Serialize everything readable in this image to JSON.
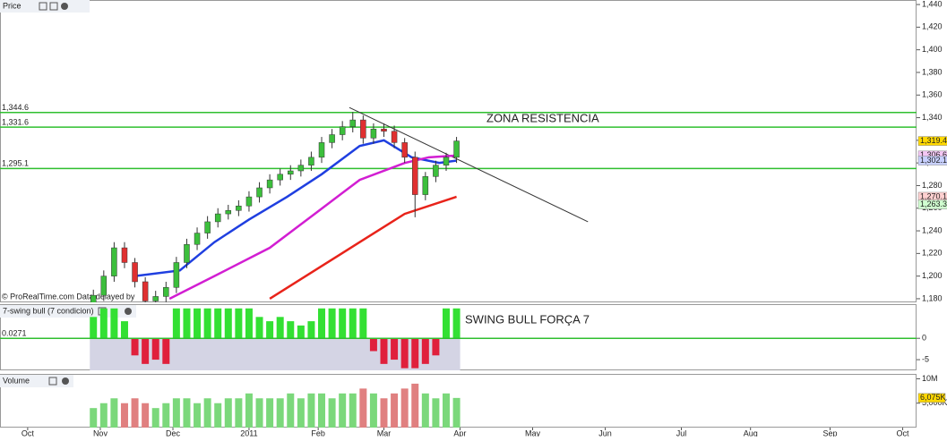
{
  "chart_data": [
    {
      "type": "candlestick",
      "title": "Price",
      "watermark": "© ProRealTime.com Data delayed by",
      "xlim": [
        0,
        265
      ],
      "ylim": [
        1176.8,
        1444
      ],
      "yticks": [
        {
          "value": 1440,
          "label": "1,440"
        },
        {
          "value": 1420,
          "label": "1,420"
        },
        {
          "value": 1400,
          "label": "1,400"
        },
        {
          "value": 1380,
          "label": "1,380"
        },
        {
          "value": 1360,
          "label": "1,360"
        },
        {
          "value": 1340,
          "label": "1,340"
        },
        {
          "value": 1320,
          "label": "1,320"
        },
        {
          "value": 1300,
          "label": "1,300"
        },
        {
          "value": 1280,
          "label": "1,280"
        },
        {
          "value": 1260,
          "label": "1,260"
        },
        {
          "value": 1240,
          "label": "1,240"
        },
        {
          "value": 1220,
          "label": "1,220"
        },
        {
          "value": 1200,
          "label": "1,200"
        },
        {
          "value": 1180,
          "label": "1,180"
        }
      ],
      "up_color": "#3cbf3c",
      "down_color": "#e03030",
      "x": [
        27,
        30,
        33,
        36,
        39,
        42,
        45,
        48,
        51,
        54,
        57,
        60,
        63,
        66,
        69,
        72,
        75,
        78,
        81,
        84,
        87,
        90,
        93,
        96,
        99,
        102,
        105,
        108,
        111,
        114,
        117,
        120,
        123,
        126,
        129,
        132
      ],
      "open": [
        1175,
        1183,
        1200,
        1225,
        1212,
        1195,
        1178,
        1182,
        1190,
        1212,
        1228,
        1238,
        1248,
        1255,
        1258,
        1262,
        1270,
        1278,
        1285,
        1290,
        1293,
        1298,
        1305,
        1318,
        1325,
        1332,
        1338,
        1322,
        1330,
        1328,
        1318,
        1305,
        1272,
        1288,
        1298,
        1305
      ],
      "high": [
        1188,
        1205,
        1230,
        1230,
        1216,
        1199,
        1187,
        1195,
        1217,
        1233,
        1243,
        1253,
        1260,
        1263,
        1267,
        1275,
        1283,
        1290,
        1295,
        1298,
        1303,
        1310,
        1323,
        1330,
        1337,
        1345,
        1342,
        1335,
        1335,
        1333,
        1322,
        1310,
        1292,
        1302,
        1309,
        1323
      ],
      "low": [
        1170,
        1178,
        1195,
        1207,
        1190,
        1173,
        1173,
        1177,
        1185,
        1207,
        1223,
        1233,
        1243,
        1250,
        1253,
        1257,
        1265,
        1273,
        1280,
        1285,
        1288,
        1293,
        1300,
        1313,
        1320,
        1327,
        1317,
        1317,
        1323,
        1313,
        1300,
        1252,
        1267,
        1283,
        1293,
        1300
      ],
      "close": [
        1183,
        1200,
        1225,
        1212,
        1195,
        1178,
        1182,
        1190,
        1212,
        1228,
        1238,
        1248,
        1255,
        1258,
        1262,
        1270,
        1278,
        1285,
        1290,
        1293,
        1298,
        1305,
        1318,
        1325,
        1332,
        1338,
        1322,
        1330,
        1328,
        1318,
        1305,
        1272,
        1288,
        1298,
        1305,
        1319.4
      ],
      "lines": [
        {
          "color": "#1f3fe0",
          "x": [
            39,
            52,
            62,
            72,
            83,
            93,
            104,
            111,
            119,
            127,
            132
          ],
          "values": [
            1200,
            1205,
            1230,
            1250,
            1270,
            1290,
            1315,
            1320,
            1305,
            1300,
            1302.1
          ]
        },
        {
          "color": "#d21ed2",
          "x": [
            49,
            62,
            78,
            91,
            104,
            117,
            124,
            132
          ],
          "values": [
            1180,
            1200,
            1225,
            1255,
            1285,
            1300,
            1305,
            1306.6
          ]
        },
        {
          "color": "#e8231a",
          "x": [
            78,
            91,
            104,
            117,
            132
          ],
          "values": [
            1180,
            1205,
            1230,
            1255,
            1270.1
          ]
        }
      ],
      "hlines": [
        {
          "value": 1344.6,
          "label": "1,344.6"
        },
        {
          "value": 1331.6,
          "label": "1,331.6"
        },
        {
          "value": 1295.1,
          "label": "1,295.1"
        }
      ],
      "hline_color": "#2fbf2f",
      "annotation": "ZONA RESISTENCIA",
      "trendline": {
        "x": [
          101,
          170
        ],
        "values": [
          1349,
          1248
        ]
      },
      "last_values": [
        {
          "value": 1319.4,
          "label": "1,319.4",
          "color": "#ffd800"
        },
        {
          "value": 1306.6,
          "label": "1,306.6",
          "color": "#f4c6f4"
        },
        {
          "value": 1302.1,
          "label": "1,302.1",
          "color": "#c8d0ff"
        },
        {
          "value": 1270.1,
          "label": "1,270.1",
          "color": "#ffd0d0"
        },
        {
          "value": 1263.3,
          "label": "1,263.3",
          "color": "#d0ffd0"
        }
      ]
    },
    {
      "type": "bar",
      "title": "7-swing bull (7 condicion)",
      "current_value": 0.0271,
      "annotation": "SWING BULL FORÇA 7",
      "xlim": [
        0,
        265
      ],
      "ylim": [
        -7.5,
        8
      ],
      "yticks": [
        0,
        -5
      ],
      "up_color": "#33e033",
      "down_color": "#e0203c",
      "zero_color": "#2fbf2f",
      "x": [
        27,
        30,
        33,
        36,
        39,
        42,
        45,
        48,
        51,
        54,
        57,
        60,
        63,
        66,
        69,
        72,
        75,
        78,
        81,
        84,
        87,
        90,
        93,
        96,
        99,
        102,
        105,
        108,
        111,
        114,
        117,
        120,
        123,
        126,
        129,
        132
      ],
      "values": [
        5,
        7,
        7,
        4,
        -4,
        -6,
        -5,
        -6,
        7,
        7,
        7,
        7,
        7,
        7,
        7,
        7,
        5,
        4,
        5,
        4,
        3,
        4,
        7,
        7,
        7,
        7,
        7,
        -3,
        -6,
        -5,
        -7,
        -7,
        -6,
        -4,
        7,
        7
      ]
    },
    {
      "type": "bar",
      "title": "Volume",
      "xlim": [
        0,
        265
      ],
      "ylim": [
        0,
        11
      ],
      "yticks": [
        {
          "value": 10,
          "label": "10M"
        },
        {
          "value": 5,
          "label": "5,000K"
        }
      ],
      "xticks": [
        {
          "value": 8,
          "label": "Oct"
        },
        {
          "value": 29,
          "label": "Nov"
        },
        {
          "value": 50,
          "label": "Dec"
        },
        {
          "value": 72,
          "label": "2011"
        },
        {
          "value": 92,
          "label": "Feb"
        },
        {
          "value": 111,
          "label": "Mar"
        },
        {
          "value": 133,
          "label": "Apr"
        },
        {
          "value": 154,
          "label": "May"
        },
        {
          "value": 175,
          "label": "Jun"
        },
        {
          "value": 197,
          "label": "Jul"
        },
        {
          "value": 217,
          "label": "Aug"
        },
        {
          "value": 240,
          "label": "Sep"
        },
        {
          "value": 261,
          "label": "Oct"
        }
      ],
      "up_color": "#7bd87b",
      "down_color": "#e08080",
      "x": [
        27,
        30,
        33,
        36,
        39,
        42,
        45,
        48,
        51,
        54,
        57,
        60,
        63,
        66,
        69,
        72,
        75,
        78,
        81,
        84,
        87,
        90,
        93,
        96,
        99,
        102,
        105,
        108,
        111,
        114,
        117,
        120,
        123,
        126,
        129,
        132
      ],
      "values": [
        4,
        5,
        6,
        5,
        6,
        5,
        4,
        5,
        6,
        6,
        5,
        6,
        5,
        6,
        6,
        7,
        6,
        6,
        6,
        7,
        6,
        7,
        7,
        6,
        7,
        7,
        8,
        7,
        6,
        7,
        8,
        9,
        7,
        6,
        7,
        6.075
      ],
      "last_value": {
        "value": 6.075,
        "label": "6,075K",
        "color": "#ffd800"
      }
    }
  ]
}
